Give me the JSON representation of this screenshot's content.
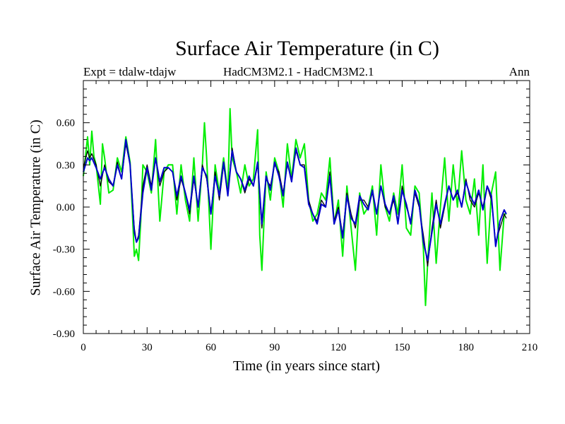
{
  "chart_data": {
    "type": "line",
    "title": "Surface Air Temperature (in C)",
    "subtitle_left": "Expt = tdalw-tdajw",
    "subtitle_center": "HadCM3M2.1 - HadCM3M2.1",
    "subtitle_right": "Ann",
    "xlabel": "Time (in years since start)",
    "ylabel": "Surface Air Temperature (in C)",
    "xlim": [
      0,
      210
    ],
    "ylim": [
      -0.9,
      0.9
    ],
    "xticks": [
      0,
      30,
      60,
      90,
      120,
      150,
      180,
      210
    ],
    "xtick_labels": [
      "0",
      "30",
      "60",
      "90",
      "120",
      "150",
      "180",
      "210"
    ],
    "yticks": [
      -0.9,
      -0.6,
      -0.3,
      0.0,
      0.3,
      0.6
    ],
    "ytick_labels": [
      "-0.90",
      "-0.60",
      "-0.30",
      "0.00",
      "0.30",
      "0.60"
    ],
    "grid": false,
    "series": [
      {
        "name": "green",
        "color": "#00ee00",
        "x": [
          0,
          2,
          3,
          4,
          5,
          6,
          8,
          9,
          10,
          12,
          14,
          16,
          18,
          20,
          22,
          24,
          25,
          26,
          27,
          28,
          30,
          32,
          34,
          36,
          38,
          40,
          42,
          44,
          46,
          48,
          50,
          52,
          54,
          56,
          57,
          58,
          60,
          62,
          64,
          66,
          68,
          69,
          70,
          72,
          74,
          76,
          78,
          80,
          82,
          83,
          84,
          86,
          88,
          90,
          92,
          94,
          96,
          98,
          100,
          102,
          104,
          106,
          108,
          110,
          112,
          114,
          116,
          118,
          120,
          122,
          124,
          126,
          128,
          130,
          132,
          134,
          136,
          138,
          140,
          142,
          144,
          146,
          148,
          150,
          152,
          154,
          156,
          158,
          160,
          161,
          162,
          164,
          166,
          168,
          170,
          172,
          174,
          176,
          178,
          180,
          182,
          184,
          186,
          188,
          190,
          192,
          194,
          196,
          198,
          199
        ],
        "values": [
          0.22,
          0.5,
          0.3,
          0.54,
          0.36,
          0.3,
          0.02,
          0.45,
          0.35,
          0.1,
          0.12,
          0.35,
          0.25,
          0.5,
          0.32,
          -0.35,
          -0.3,
          -0.38,
          -0.1,
          0.3,
          0.25,
          0.1,
          0.48,
          -0.1,
          0.25,
          0.3,
          0.3,
          -0.05,
          0.3,
          0.05,
          -0.1,
          0.35,
          -0.1,
          0.3,
          0.6,
          0.35,
          -0.3,
          0.3,
          0.1,
          0.35,
          0.1,
          0.7,
          0.35,
          0.25,
          0.1,
          0.3,
          0.15,
          0.2,
          0.55,
          -0.2,
          -0.45,
          0.25,
          0.05,
          0.35,
          0.25,
          0.0,
          0.45,
          0.2,
          0.48,
          0.35,
          0.45,
          0.05,
          -0.1,
          -0.05,
          0.1,
          0.05,
          0.35,
          -0.12,
          0.05,
          -0.35,
          0.15,
          -0.15,
          -0.45,
          0.1,
          -0.05,
          0.0,
          0.15,
          -0.2,
          0.3,
          0.0,
          -0.1,
          0.1,
          -0.05,
          0.3,
          -0.15,
          -0.2,
          0.15,
          0.1,
          -0.3,
          -0.7,
          -0.4,
          0.1,
          -0.4,
          0.0,
          0.35,
          -0.1,
          0.3,
          0.0,
          0.4,
          0.05,
          -0.05,
          0.2,
          -0.2,
          0.3,
          -0.4,
          0.1,
          0.25,
          -0.45,
          -0.05,
          -0.05
        ]
      },
      {
        "name": "black",
        "color": "#000000",
        "x": [
          0,
          2,
          3,
          4,
          6,
          8,
          10,
          12,
          14,
          16,
          18,
          20,
          22,
          24,
          25,
          26,
          28,
          30,
          32,
          34,
          36,
          38,
          40,
          42,
          44,
          46,
          48,
          50,
          52,
          54,
          56,
          58,
          60,
          62,
          64,
          66,
          68,
          70,
          72,
          74,
          76,
          78,
          80,
          82,
          84,
          86,
          88,
          90,
          92,
          94,
          96,
          98,
          100,
          102,
          104,
          106,
          108,
          110,
          112,
          114,
          116,
          118,
          120,
          122,
          124,
          126,
          128,
          130,
          132,
          134,
          136,
          138,
          140,
          142,
          144,
          146,
          148,
          150,
          152,
          154,
          156,
          158,
          160,
          162,
          164,
          166,
          168,
          170,
          172,
          174,
          176,
          178,
          180,
          182,
          184,
          186,
          188,
          190,
          192,
          194,
          196,
          198,
          199
        ],
        "values": [
          0.28,
          0.4,
          0.35,
          0.38,
          0.3,
          0.15,
          0.3,
          0.18,
          0.15,
          0.32,
          0.2,
          0.45,
          0.3,
          -0.15,
          -0.25,
          -0.2,
          0.15,
          0.3,
          0.15,
          0.35,
          0.15,
          0.25,
          0.28,
          0.25,
          0.05,
          0.2,
          0.1,
          -0.05,
          0.2,
          0.0,
          0.3,
          0.2,
          -0.05,
          0.25,
          0.05,
          0.3,
          0.1,
          0.42,
          0.25,
          0.2,
          0.1,
          0.2,
          0.15,
          0.3,
          -0.15,
          0.2,
          0.15,
          0.3,
          0.25,
          0.1,
          0.3,
          0.2,
          0.4,
          0.3,
          0.3,
          0.05,
          -0.05,
          -0.1,
          0.05,
          0.0,
          0.25,
          -0.1,
          0.0,
          -0.2,
          0.1,
          -0.05,
          -0.15,
          0.05,
          0.05,
          0.0,
          0.1,
          -0.05,
          0.15,
          0.0,
          -0.05,
          0.05,
          -0.1,
          0.15,
          0.0,
          -0.1,
          0.1,
          0.0,
          -0.2,
          -0.42,
          -0.15,
          0.05,
          -0.15,
          0.0,
          0.15,
          0.05,
          0.1,
          0.0,
          0.2,
          0.05,
          0.0,
          0.1,
          0.0,
          0.15,
          0.05,
          -0.25,
          -0.15,
          -0.05,
          -0.08
        ]
      },
      {
        "name": "blue",
        "color": "#0000cc",
        "x": [
          0,
          2,
          3,
          4,
          6,
          8,
          10,
          12,
          14,
          16,
          18,
          20,
          22,
          24,
          25,
          26,
          28,
          30,
          32,
          34,
          36,
          38,
          40,
          42,
          44,
          46,
          48,
          50,
          52,
          54,
          56,
          58,
          60,
          62,
          64,
          66,
          68,
          70,
          72,
          74,
          76,
          78,
          80,
          82,
          84,
          86,
          88,
          90,
          92,
          94,
          96,
          98,
          100,
          102,
          104,
          106,
          108,
          110,
          112,
          114,
          116,
          118,
          120,
          122,
          124,
          126,
          128,
          130,
          132,
          134,
          136,
          138,
          140,
          142,
          144,
          146,
          148,
          150,
          152,
          154,
          156,
          158,
          160,
          162,
          164,
          166,
          168,
          170,
          172,
          174,
          176,
          178,
          180,
          182,
          184,
          186,
          188,
          190,
          192,
          194,
          196,
          198,
          199
        ],
        "values": [
          0.25,
          0.35,
          0.33,
          0.35,
          0.28,
          0.2,
          0.28,
          0.2,
          0.15,
          0.3,
          0.2,
          0.48,
          0.3,
          -0.18,
          -0.25,
          -0.22,
          0.1,
          0.28,
          0.12,
          0.35,
          0.18,
          0.28,
          0.28,
          0.25,
          0.08,
          0.22,
          0.1,
          -0.02,
          0.22,
          0.0,
          0.28,
          0.22,
          -0.05,
          0.22,
          0.08,
          0.32,
          0.08,
          0.4,
          0.25,
          0.2,
          0.12,
          0.22,
          0.15,
          0.32,
          -0.12,
          0.22,
          0.12,
          0.32,
          0.22,
          0.08,
          0.32,
          0.18,
          0.42,
          0.3,
          0.28,
          0.02,
          -0.05,
          -0.12,
          0.02,
          0.0,
          0.22,
          -0.12,
          -0.02,
          -0.22,
          0.08,
          -0.08,
          -0.12,
          0.08,
          0.02,
          -0.02,
          0.12,
          -0.05,
          0.15,
          0.02,
          -0.05,
          0.08,
          -0.12,
          0.12,
          0.02,
          -0.12,
          0.12,
          0.02,
          -0.25,
          -0.38,
          -0.18,
          0.02,
          -0.12,
          0.02,
          0.15,
          0.05,
          0.12,
          0.0,
          0.18,
          0.08,
          0.02,
          0.12,
          -0.02,
          0.15,
          0.08,
          -0.28,
          -0.1,
          -0.02,
          -0.05
        ]
      }
    ]
  }
}
